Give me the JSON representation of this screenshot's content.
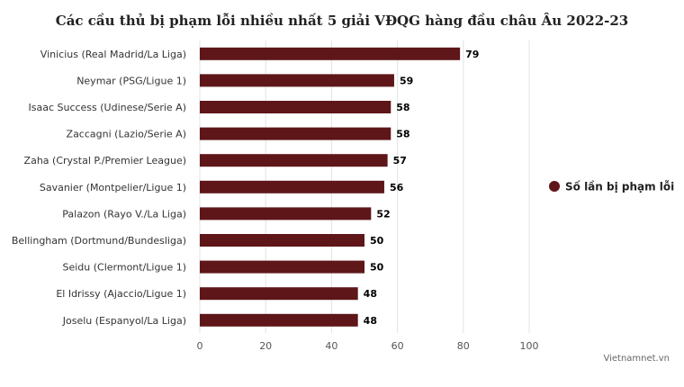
{
  "chart_data": {
    "type": "bar",
    "orientation": "horizontal",
    "title": "Các cầu thủ bị phạm lỗi nhiều nhất 5 giải VĐQG hàng đầu châu Âu 2022-23",
    "categories": [
      "Vinicius (Real Madrid/La Liga)",
      "Neymar (PSG/Ligue 1)",
      "Isaac Success (Udinese/Serie A)",
      "Zaccagni (Lazio/Serie A)",
      "Zaha (Crystal P./Premier League)",
      "Savanier (Montpelier/Ligue 1)",
      "Palazon (Rayo V./La Liga)",
      "Bellingham (Dortmund/Bundesliga)",
      "Seidu (Clermont/Ligue 1)",
      "El Idrissy (Ajaccio/Ligue 1)",
      "Joselu (Espanyol/La Liga)"
    ],
    "series": [
      {
        "name": "Số lần bị phạm lỗi",
        "color": "#5e1619",
        "values": [
          79,
          59,
          58,
          58,
          57,
          56,
          52,
          50,
          50,
          48,
          48
        ]
      }
    ],
    "xlim": [
      0,
      100
    ],
    "xticks": [
      0,
      20,
      40,
      60,
      80,
      100
    ],
    "grid": true,
    "legend": "right",
    "source": "Vietnamnet.vn"
  }
}
